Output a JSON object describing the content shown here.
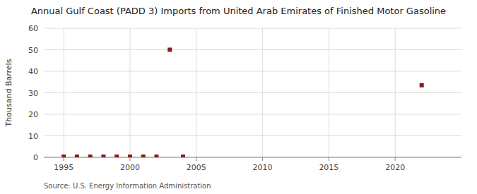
{
  "chart_data": {
    "type": "scatter",
    "title": "Annual Gulf Coast (PADD 3) Imports from United Arab Emirates of Finished Motor Gasoline",
    "ylabel": "Thousand Barrels",
    "source": "Source: U.S. Energy Information Administration",
    "x": [
      1995,
      1996,
      1997,
      1998,
      1999,
      2000,
      2001,
      2002,
      2003,
      2004,
      2022
    ],
    "values": [
      0.3,
      0.3,
      0.3,
      0.3,
      0.3,
      0.3,
      0.3,
      0.3,
      50,
      0.3,
      33.5
    ],
    "color": "#8b1a1a",
    "marker": "square",
    "xlim": [
      1993.5,
      2025
    ],
    "ylim": [
      0,
      60
    ],
    "xticks": [
      1995,
      2000,
      2005,
      2010,
      2015,
      2020
    ],
    "yticks": [
      0,
      10,
      20,
      30,
      40,
      50,
      60
    ],
    "grid": true
  }
}
